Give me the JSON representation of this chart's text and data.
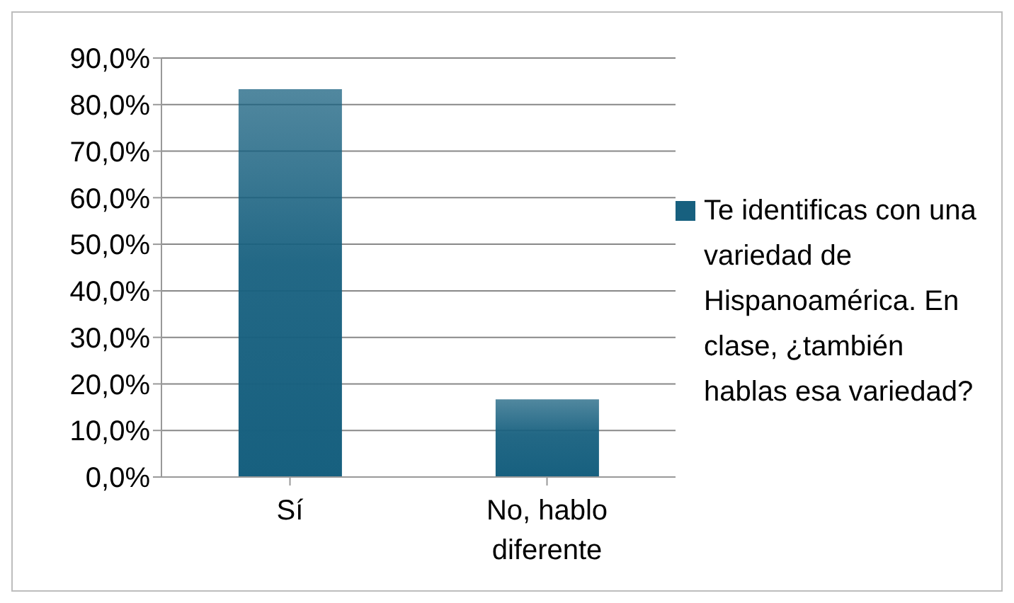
{
  "chart_data": {
    "type": "bar",
    "categories": [
      "Sí",
      "No, hablo diferente"
    ],
    "series": [
      {
        "name": "Te identificas con una variedad de Hispanoamérica. En clase, ¿también hablas esa variedad?",
        "color": "#17607f",
        "values": [
          83.3,
          16.7
        ]
      }
    ],
    "ylim": [
      0,
      90
    ],
    "yticks": [
      {
        "value": 0,
        "label": "0,0%"
      },
      {
        "value": 10,
        "label": "10,0%"
      },
      {
        "value": 20,
        "label": "20,0%"
      },
      {
        "value": 30,
        "label": "30,0%"
      },
      {
        "value": 40,
        "label": "40,0%"
      },
      {
        "value": 50,
        "label": "50,0%"
      },
      {
        "value": 60,
        "label": "60,0%"
      },
      {
        "value": 70,
        "label": "70,0%"
      },
      {
        "value": 80,
        "label": "80,0%"
      },
      {
        "value": 90,
        "label": "90,0%"
      }
    ],
    "grid": "y",
    "legend": "right"
  }
}
